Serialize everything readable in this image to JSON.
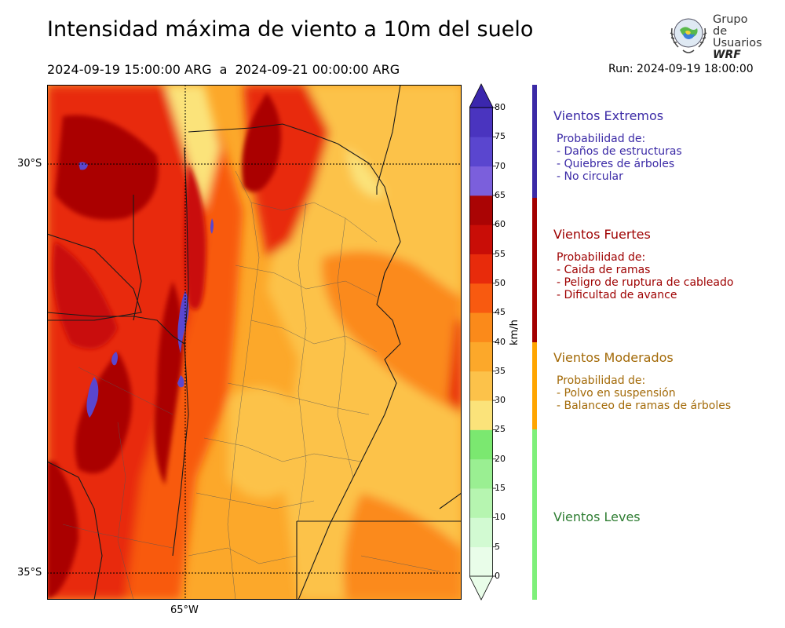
{
  "title": "Intensidad máxima de viento a 10m del suelo",
  "range": "2024-09-19 15:00:00 ARG  a  2024-09-21 00:00:00 ARG",
  "run": "Run: 2024-09-19 18:00:00",
  "logo": {
    "line1": "Grupo de",
    "line2": "Usuarios",
    "line3": "WRF"
  },
  "axes": {
    "lat_labels": [
      "30°S",
      "35°S"
    ],
    "lon_labels": [
      "65°W"
    ]
  },
  "colorbar": {
    "unit": "km/h",
    "ticks": [
      "0",
      "5",
      "10",
      "15",
      "20",
      "25",
      "30",
      "35",
      "40",
      "45",
      "50",
      "55",
      "60",
      "65",
      "70",
      "75",
      "80"
    ],
    "colors": [
      "#e9fde9",
      "#d2fad2",
      "#b6f5b0",
      "#9aef92",
      "#7be870",
      "#fbe37a",
      "#fcc24a",
      "#fca82a",
      "#fb8a1a",
      "#f85a10",
      "#e82b0b",
      "#c90d07",
      "#aa0404",
      "#7b5fdc",
      "#5a46cf",
      "#4a34bf",
      "#3b27ad"
    ]
  },
  "categories": [
    {
      "title": "Vientos Extremos",
      "color": "#3b2aa6",
      "lines": [
        "Probabilidad de:",
        "- Daños de estructuras",
        "- Quiebres de árboles",
        "- No circular"
      ]
    },
    {
      "title": "Vientos Fuertes",
      "color": "#9e0000",
      "lines": [
        "Probabilidad de:",
        "- Caida de ramas",
        "- Peligro de ruptura de cableado",
        "- Dificultad de avance"
      ]
    },
    {
      "title": "Vientos Moderados",
      "color": "#a36a08",
      "lines": [
        "Probabilidad de:",
        "- Polvo en suspensión",
        "- Balanceo de ramas de árboles"
      ]
    },
    {
      "title": "Vientos Leves",
      "color": "#2e7d32",
      "lines": []
    }
  ],
  "bar_colors": {
    "extreme": "#3b2aa6",
    "strong": "#a30000",
    "moderate": "#ffa500",
    "light": "#7ef07a"
  }
}
